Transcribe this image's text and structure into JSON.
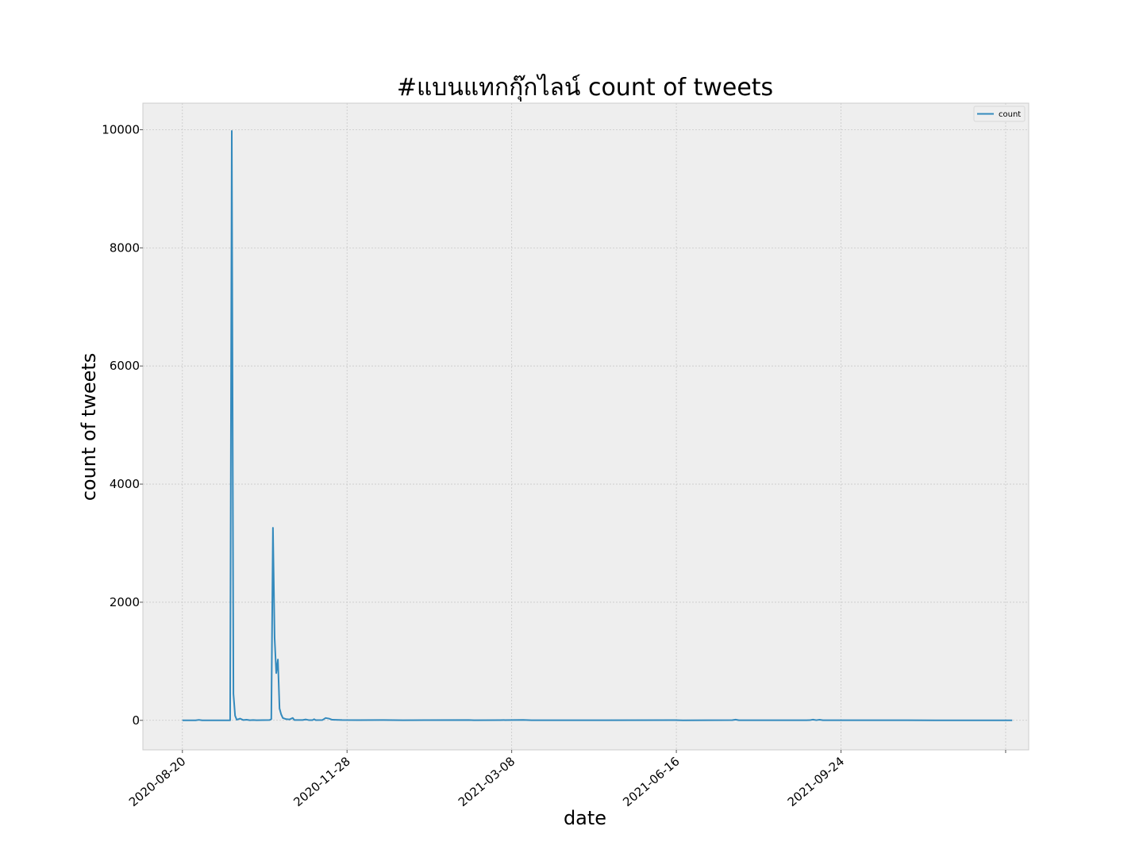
{
  "chart_data": {
    "type": "line",
    "title": "#แบนแทกกุ๊กไลน์ count of tweets",
    "xlabel": "date",
    "ylabel": "count of tweets",
    "x_tick_labels": [
      "2020-08-20",
      "2020-11-28",
      "2021-03-08",
      "2021-06-16",
      "2021-09-24"
    ],
    "x_tick_dates": [
      "2020-08-20",
      "2020-11-28",
      "2021-03-08",
      "2021-06-16",
      "2021-09-24",
      "2022-01-02"
    ],
    "y_ticks": [
      0,
      2000,
      4000,
      6000,
      8000,
      10000
    ],
    "xlim": [
      "2020-07-27",
      "2022-01-16"
    ],
    "ylim": [
      -500,
      10450
    ],
    "grid": true,
    "legend_position": "top-right",
    "colors": {
      "series": "#348abd",
      "plot_bg": "#eeeeee",
      "frame": "#cccccc"
    },
    "series": [
      {
        "name": "count",
        "points": [
          [
            "2020-08-20",
            0
          ],
          [
            "2020-08-28",
            0
          ],
          [
            "2020-08-30",
            8
          ],
          [
            "2020-09-01",
            0
          ],
          [
            "2020-09-18",
            0
          ],
          [
            "2020-09-19",
            9980
          ],
          [
            "2020-09-20",
            450
          ],
          [
            "2020-09-21",
            80
          ],
          [
            "2020-09-22",
            10
          ],
          [
            "2020-09-24",
            30
          ],
          [
            "2020-09-26",
            5
          ],
          [
            "2020-09-28",
            10
          ],
          [
            "2020-09-30",
            2
          ],
          [
            "2020-10-02",
            5
          ],
          [
            "2020-10-04",
            2
          ],
          [
            "2020-10-08",
            3
          ],
          [
            "2020-10-12",
            5
          ],
          [
            "2020-10-13",
            20
          ],
          [
            "2020-10-14",
            3260
          ],
          [
            "2020-10-15",
            1400
          ],
          [
            "2020-10-16",
            800
          ],
          [
            "2020-10-17",
            1030
          ],
          [
            "2020-10-18",
            200
          ],
          [
            "2020-10-19",
            100
          ],
          [
            "2020-10-20",
            40
          ],
          [
            "2020-10-22",
            20
          ],
          [
            "2020-10-24",
            15
          ],
          [
            "2020-10-26",
            40
          ],
          [
            "2020-10-27",
            5
          ],
          [
            "2020-11-01",
            5
          ],
          [
            "2020-11-03",
            15
          ],
          [
            "2020-11-05",
            3
          ],
          [
            "2020-11-07",
            3
          ],
          [
            "2020-11-08",
            20
          ],
          [
            "2020-11-09",
            3
          ],
          [
            "2020-11-13",
            5
          ],
          [
            "2020-11-15",
            40
          ],
          [
            "2020-11-17",
            30
          ],
          [
            "2020-11-19",
            10
          ],
          [
            "2020-11-25",
            5
          ],
          [
            "2020-12-05",
            3
          ],
          [
            "2020-12-20",
            5
          ],
          [
            "2021-01-01",
            2
          ],
          [
            "2021-01-15",
            3
          ],
          [
            "2021-02-10",
            6
          ],
          [
            "2021-02-13",
            2
          ],
          [
            "2021-03-01",
            4
          ],
          [
            "2021-03-15",
            8
          ],
          [
            "2021-03-20",
            2
          ],
          [
            "2021-04-20",
            2
          ],
          [
            "2021-06-15",
            3
          ],
          [
            "2021-06-20",
            1
          ],
          [
            "2021-07-20",
            4
          ],
          [
            "2021-07-22",
            12
          ],
          [
            "2021-07-24",
            2
          ],
          [
            "2021-09-05",
            3
          ],
          [
            "2021-09-07",
            12
          ],
          [
            "2021-09-09",
            3
          ],
          [
            "2021-09-11",
            10
          ],
          [
            "2021-09-13",
            2
          ],
          [
            "2021-10-10",
            2
          ],
          [
            "2021-11-20",
            1
          ],
          [
            "2022-01-01",
            1
          ],
          [
            "2022-01-06",
            0
          ]
        ]
      }
    ]
  }
}
